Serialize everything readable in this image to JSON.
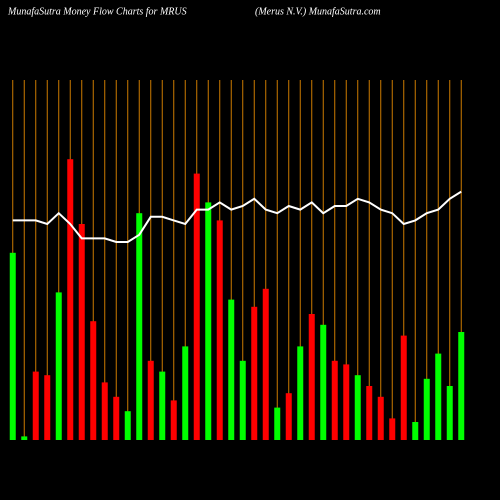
{
  "chart_data": {
    "type": "bar",
    "title": "MunafaSutra  Money Flow  Charts for MRUS",
    "subtitle": "(Merus N.V.) MunafaSutra.com",
    "categories": [
      null,
      null,
      null,
      null,
      null,
      null,
      null,
      null,
      null,
      null,
      null,
      null,
      null,
      null,
      null,
      null,
      null,
      null,
      null,
      null,
      null,
      null,
      null,
      null,
      null,
      null,
      null,
      null,
      null,
      null,
      null,
      null,
      null,
      null,
      null,
      null,
      null,
      null,
      null,
      null
    ],
    "series": [
      {
        "colors": [
          "#00ff00",
          "#00ff00",
          "#ff0000",
          "#ff0000",
          "#00ff00",
          "#ff0000",
          "#ff0000",
          "#ff0000",
          "#ff0000",
          "#ff0000",
          "#00ff00",
          "#00ff00",
          "#ff0000",
          "#00ff00",
          "#ff0000",
          "#00ff00",
          "#ff0000",
          "#00ff00",
          "#ff0000",
          "#00ff00",
          "#00ff00",
          "#ff0000",
          "#ff0000",
          "#00ff00",
          "#ff0000",
          "#00ff00",
          "#ff0000",
          "#00ff00",
          "#ff0000",
          "#ff0000",
          "#00ff00",
          "#ff0000",
          "#ff0000",
          "#ff0000",
          "#ff0000",
          "#00ff00",
          "#00ff00",
          "#00ff00",
          "#00ff00",
          "#00ff00"
        ],
        "values": [
          52,
          1,
          19,
          18,
          41,
          78,
          60,
          33,
          16,
          12,
          8,
          63,
          22,
          19,
          11,
          26,
          74,
          66,
          61,
          39,
          22,
          37,
          42,
          9,
          13,
          26,
          35,
          32,
          22,
          21,
          18,
          15,
          12,
          6,
          29,
          5,
          17,
          24,
          15,
          30
        ]
      },
      {
        "type": "line",
        "color": "#ffffff",
        "values": [
          61,
          61,
          61,
          60,
          63,
          60,
          56,
          56,
          56,
          55,
          55,
          57,
          62,
          62,
          61,
          60,
          64,
          64,
          66,
          64,
          65,
          67,
          64,
          63,
          65,
          64,
          66,
          63,
          65,
          65,
          67,
          66,
          64,
          63,
          60,
          61,
          63,
          64,
          67,
          69
        ]
      }
    ],
    "grid_color": "#cc7a00",
    "ylim": [
      0,
      100
    ]
  }
}
